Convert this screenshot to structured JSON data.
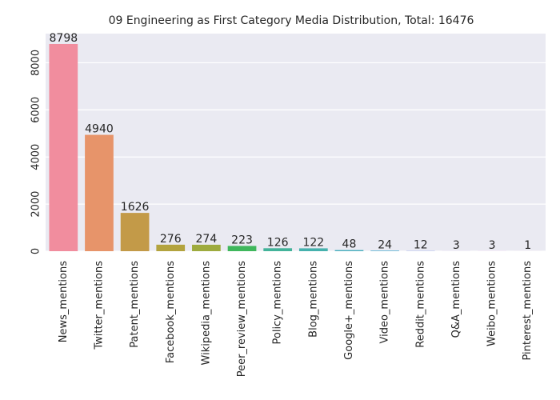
{
  "chart_data": {
    "type": "bar",
    "title": "09 Engineering as First Category Media Distribution, Total: 16476",
    "xlabel": "",
    "ylabel": "",
    "categories": [
      "News_mentions",
      "Twitter_mentions",
      "Patent_mentions",
      "Facebook_mentions",
      "Wikipedia_mentions",
      "Peer_review_mentions",
      "Policy_mentions",
      "Blog_mentions",
      "Google+_mentions",
      "Video_mentions",
      "Reddit_mentions",
      "Q&A_mentions",
      "Weibo_mentions",
      "Pinterest_mentions"
    ],
    "values": [
      8798,
      4940,
      1626,
      276,
      274,
      223,
      126,
      122,
      48,
      24,
      12,
      3,
      3,
      1
    ],
    "data_labels": [
      "8798",
      "4940",
      "1626",
      "276",
      "274",
      "223",
      "126",
      "122",
      "48",
      "24",
      "12",
      "3",
      "3",
      "1"
    ],
    "yticks": [
      0,
      2000,
      4000,
      6000,
      8000
    ],
    "ytick_labels": [
      "0",
      "2000",
      "4000",
      "6000",
      "8000"
    ],
    "ylim": [
      0,
      9238
    ],
    "grid": true,
    "colors": [
      "#f18d9e",
      "#e7946a",
      "#c39a48",
      "#b3a33e",
      "#9eab3e",
      "#3fb75c",
      "#43b39a",
      "#45b1ad",
      "#47aebd",
      "#4aa9d0",
      "#8fa3ea",
      "#c395ee",
      "#e88be0",
      "#f48bb8"
    ],
    "plot_background": "#eaeaf2",
    "grid_color": "#ffffff"
  }
}
